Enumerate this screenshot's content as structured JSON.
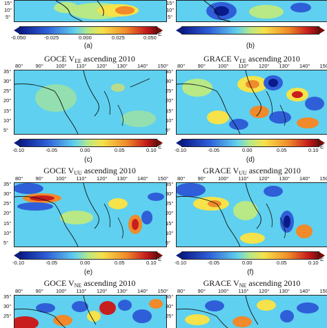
{
  "panels": [
    {
      "key": "a",
      "title_main": "",
      "title_sub": "",
      "title_tail": "",
      "label": "(a)"
    },
    {
      "key": "b",
      "title_main": "",
      "title_sub": "",
      "title_tail": "",
      "label": "(b)"
    },
    {
      "key": "c",
      "title_main": "GOCE V",
      "title_sub": "EE",
      "title_tail": " ascending 2010",
      "label": "(c)"
    },
    {
      "key": "d",
      "title_main": "GRACE V",
      "title_sub": "EE",
      "title_tail": " ascending 2010",
      "label": "(d)"
    },
    {
      "key": "e",
      "title_main": "GOCE V",
      "title_sub": "UU",
      "title_tail": " ascending 2010",
      "label": "(e)"
    },
    {
      "key": "f",
      "title_main": "GRACE V",
      "title_sub": "UU",
      "title_tail": " ascending 2010",
      "label": "(f)"
    },
    {
      "key": "g",
      "title_main": "GOCE V",
      "title_sub": "NE",
      "title_tail": " ascending 2010",
      "label": ""
    },
    {
      "key": "h",
      "title_main": "GRACE V",
      "title_sub": "NE",
      "title_tail": " ascending 2010",
      "label": ""
    }
  ],
  "lon_ticks": [
    "80°",
    "90°",
    "100°",
    "110°",
    "120°",
    "130°",
    "140°",
    "150°"
  ],
  "lat_ticks_full": [
    "35°",
    "30°",
    "25°",
    "20°",
    "15°",
    "10°",
    "5°"
  ],
  "lat_ticks_top": [
    "15°",
    "10°",
    "5°"
  ],
  "lat_ticks_bottom": [
    "35°",
    "30°",
    "25°"
  ],
  "colorbars": [
    {
      "ticks": [
        "-0.050",
        "-0.025",
        "0.000",
        "0.025",
        "0.050"
      ],
      "unit": "E"
    },
    {
      "ticks": [
        "-0.10",
        "-0.05",
        "0.00",
        "0.05",
        "0.10"
      ],
      "unit": "E"
    },
    {
      "ticks": [
        "-0.10",
        "-0.05",
        "0.00",
        "0.05",
        "0.10"
      ],
      "unit": "E"
    }
  ],
  "colors": {
    "deep_blue": "#0a1a8a",
    "blue": "#2f5fd8",
    "cyan": "#5fd0ef",
    "light_green": "#b8e986",
    "yellow": "#f6e24a",
    "orange": "#f08a2a",
    "red": "#c81e1e",
    "dark_red": "#7a0a0a"
  }
}
